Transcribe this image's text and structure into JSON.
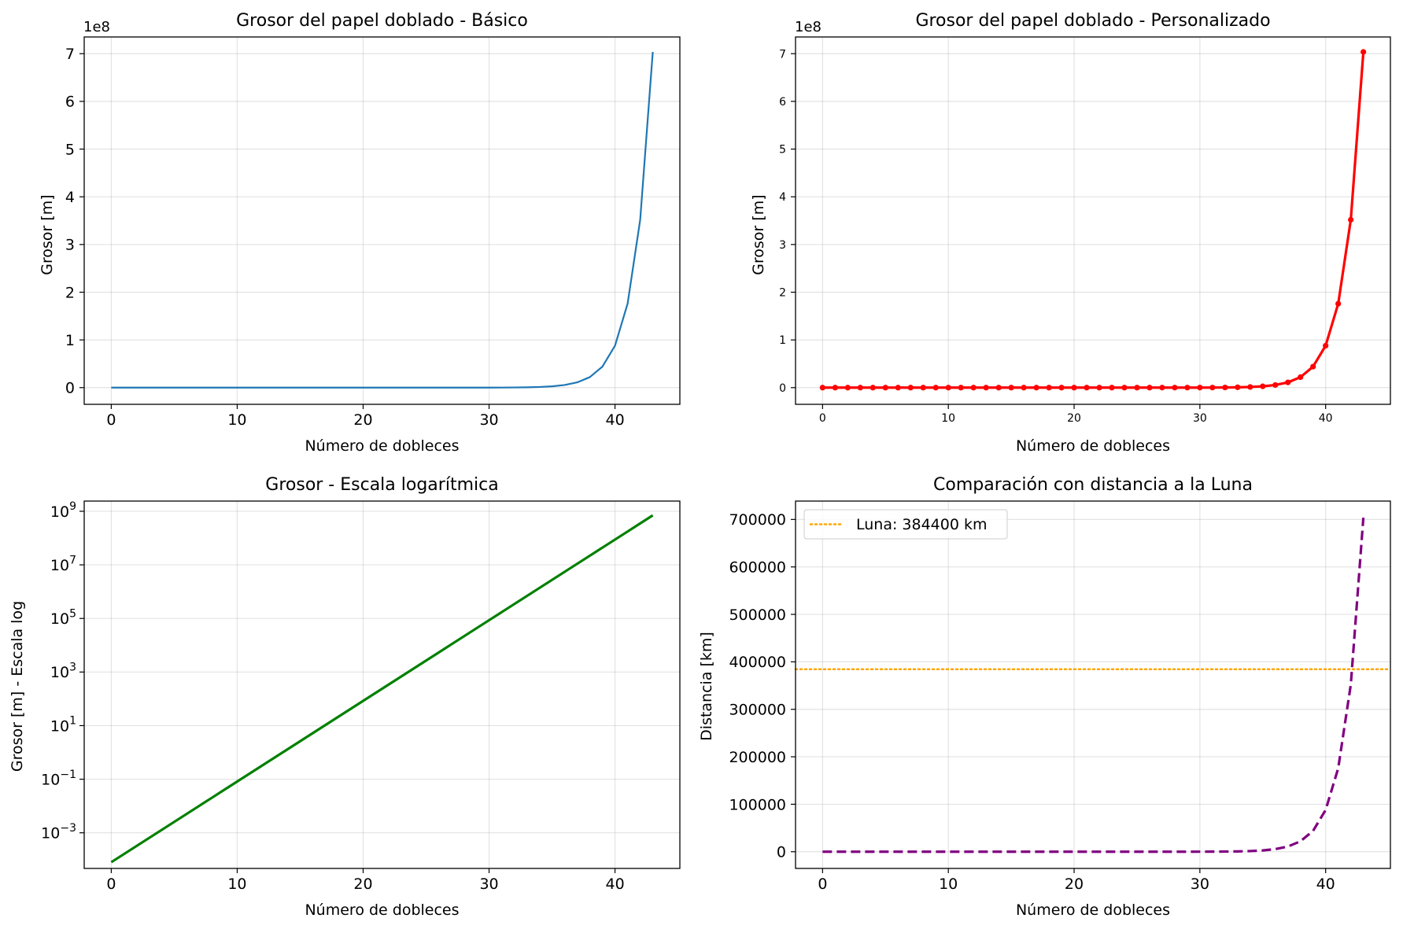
{
  "chart_data": [
    {
      "type": "line",
      "title": "Grosor del papel doblado - Básico",
      "xlabel": "Número de dobleces",
      "ylabel": "Grosor [m]",
      "offset_text": "1e8",
      "xlim": [
        -2.15,
        45.15
      ],
      "ylim": [
        -35000000,
        735000000
      ],
      "xticks": [
        0,
        10,
        20,
        30,
        40
      ],
      "xtick_labels": [
        "0",
        "10",
        "20",
        "30",
        "40"
      ],
      "yticks": [
        0,
        100000000,
        200000000,
        300000000,
        400000000,
        500000000,
        600000000,
        700000000
      ],
      "ytick_labels": [
        "0",
        "1",
        "2",
        "3",
        "4",
        "5",
        "6",
        "7"
      ],
      "grid": true,
      "series": [
        {
          "color": "#1f77b4",
          "style": "solid",
          "markers": false,
          "x": [
            0,
            1,
            2,
            3,
            4,
            5,
            6,
            7,
            8,
            9,
            10,
            11,
            12,
            13,
            14,
            15,
            16,
            17,
            18,
            19,
            20,
            21,
            22,
            23,
            24,
            25,
            26,
            27,
            28,
            29,
            30,
            31,
            32,
            33,
            34,
            35,
            36,
            37,
            38,
            39,
            40,
            41,
            42,
            43
          ],
          "y": [
            8e-05,
            0.00016,
            0.00032,
            0.00064,
            0.00128,
            0.00256,
            0.00512,
            0.01024,
            0.02048,
            0.04096,
            0.08192,
            0.16384,
            0.32768,
            0.65536,
            1.31072,
            2.62144,
            5.24288,
            10.48576,
            20.97152,
            41.94304,
            83.88608,
            167.77216,
            335.54432,
            671.08864,
            1342.17728,
            2684.35456,
            5368.70912,
            10737.41824,
            21474.83648,
            42949.67296,
            85899.34592,
            171798.69184,
            343597.38368,
            687194.76736,
            1374389.53472,
            2748779.06944,
            5497558.13888,
            10995116.27776,
            21990232.55552,
            43980465.11104,
            87960930.22208,
            175921860.44416,
            351843720.88832,
            703687441.77664
          ]
        }
      ]
    },
    {
      "type": "line",
      "title": "Grosor del papel doblado - Personalizado",
      "xlabel": "Número de dobleces",
      "ylabel": "Grosor [m]",
      "offset_text": "1e8",
      "xlim": [
        -2.15,
        45.15
      ],
      "ylim": [
        -35000000,
        735000000
      ],
      "xticks": [
        0,
        10,
        20,
        30,
        40
      ],
      "xtick_labels": [
        "0",
        "10",
        "20",
        "30",
        "40"
      ],
      "yticks": [
        0,
        100000000,
        200000000,
        300000000,
        400000000,
        500000000,
        600000000,
        700000000
      ],
      "ytick_labels": [
        "0",
        "1",
        "2",
        "3",
        "4",
        "5",
        "6",
        "7"
      ],
      "grid": true,
      "series": [
        {
          "color": "#ff0000",
          "style": "solid",
          "markers": true,
          "x": [
            0,
            1,
            2,
            3,
            4,
            5,
            6,
            7,
            8,
            9,
            10,
            11,
            12,
            13,
            14,
            15,
            16,
            17,
            18,
            19,
            20,
            21,
            22,
            23,
            24,
            25,
            26,
            27,
            28,
            29,
            30,
            31,
            32,
            33,
            34,
            35,
            36,
            37,
            38,
            39,
            40,
            41,
            42,
            43
          ],
          "y": [
            8e-05,
            0.00016,
            0.00032,
            0.00064,
            0.00128,
            0.00256,
            0.00512,
            0.01024,
            0.02048,
            0.04096,
            0.08192,
            0.16384,
            0.32768,
            0.65536,
            1.31072,
            2.62144,
            5.24288,
            10.48576,
            20.97152,
            41.94304,
            83.88608,
            167.77216,
            335.54432,
            671.08864,
            1342.17728,
            2684.35456,
            5368.70912,
            10737.41824,
            21474.83648,
            42949.67296,
            85899.34592,
            171798.69184,
            343597.38368,
            687194.76736,
            1374389.53472,
            2748779.06944,
            5497558.13888,
            10995116.27776,
            21990232.55552,
            43980465.11104,
            87960930.22208,
            175921860.44416,
            351843720.88832,
            703687441.77664
          ]
        }
      ]
    },
    {
      "type": "line",
      "title": "Grosor - Escala logarítmica",
      "xlabel": "Número de dobleces",
      "ylabel": "Grosor [m] - Escala log",
      "yscale": "log",
      "xlim": [
        -2.15,
        45.15
      ],
      "ylim": [
        4.68e-05,
        2400000000
      ],
      "xticks": [
        0,
        10,
        20,
        30,
        40
      ],
      "xtick_labels": [
        "0",
        "10",
        "20",
        "30",
        "40"
      ],
      "yticks": [
        0.001,
        0.1,
        10,
        1000,
        100000,
        10000000,
        1000000000
      ],
      "ytick_labels": [
        [
          "10",
          "−3"
        ],
        [
          "10",
          "−1"
        ],
        [
          "10",
          "1"
        ],
        [
          "10",
          "3"
        ],
        [
          "10",
          "5"
        ],
        [
          "10",
          "7"
        ],
        [
          "10",
          "9"
        ]
      ],
      "grid": true,
      "series": [
        {
          "color": "#008000",
          "style": "solid",
          "markers": false,
          "x": [
            0,
            1,
            2,
            3,
            4,
            5,
            6,
            7,
            8,
            9,
            10,
            11,
            12,
            13,
            14,
            15,
            16,
            17,
            18,
            19,
            20,
            21,
            22,
            23,
            24,
            25,
            26,
            27,
            28,
            29,
            30,
            31,
            32,
            33,
            34,
            35,
            36,
            37,
            38,
            39,
            40,
            41,
            42,
            43
          ],
          "y": [
            8e-05,
            0.00016,
            0.00032,
            0.00064,
            0.00128,
            0.00256,
            0.00512,
            0.01024,
            0.02048,
            0.04096,
            0.08192,
            0.16384,
            0.32768,
            0.65536,
            1.31072,
            2.62144,
            5.24288,
            10.48576,
            20.97152,
            41.94304,
            83.88608,
            167.77216,
            335.54432,
            671.08864,
            1342.17728,
            2684.35456,
            5368.70912,
            10737.41824,
            21474.83648,
            42949.67296,
            85899.34592,
            171798.69184,
            343597.38368,
            687194.76736,
            1374389.53472,
            2748779.06944,
            5497558.13888,
            10995116.27776,
            21990232.55552,
            43980465.11104,
            87960930.22208,
            175921860.44416,
            351843720.88832,
            703687441.77664
          ]
        }
      ]
    },
    {
      "type": "line",
      "title": "Comparación con distancia a la Luna",
      "xlabel": "Número de dobleces",
      "ylabel": "Distancia [km]",
      "xlim": [
        -2.15,
        45.15
      ],
      "ylim": [
        -35200,
        738700
      ],
      "xticks": [
        0,
        10,
        20,
        30,
        40
      ],
      "xtick_labels": [
        "0",
        "10",
        "20",
        "30",
        "40"
      ],
      "yticks": [
        0,
        100000,
        200000,
        300000,
        400000,
        500000,
        600000,
        700000
      ],
      "ytick_labels": [
        "0",
        "100000",
        "200000",
        "300000",
        "400000",
        "500000",
        "600000",
        "700000"
      ],
      "grid": true,
      "legend_placement": "top-left",
      "hline": {
        "y": 384400,
        "color": "#ffa500",
        "style": "dotted",
        "label": "Luna: 384400 km"
      },
      "series": [
        {
          "color": "#800080",
          "style": "dashed",
          "markers": false,
          "x": [
            0,
            1,
            2,
            3,
            4,
            5,
            6,
            7,
            8,
            9,
            10,
            11,
            12,
            13,
            14,
            15,
            16,
            17,
            18,
            19,
            20,
            21,
            22,
            23,
            24,
            25,
            26,
            27,
            28,
            29,
            30,
            31,
            32,
            33,
            34,
            35,
            36,
            37,
            38,
            39,
            40,
            41,
            42,
            43
          ],
          "y": [
            0,
            0,
            0,
            0,
            0,
            0,
            0,
            0,
            0,
            0,
            0,
            0,
            0,
            0,
            0,
            0.003,
            0.005,
            0.01,
            0.021,
            0.042,
            0.084,
            0.168,
            0.336,
            0.671,
            1.342,
            2.684,
            5.369,
            10.737,
            21.475,
            42.95,
            85.899,
            171.799,
            343.597,
            687.195,
            1374.39,
            2748.779,
            5497.558,
            10995.116,
            21990.233,
            43980.465,
            87960.93,
            175921.86,
            351843.721,
            703687.442
          ]
        }
      ]
    }
  ]
}
